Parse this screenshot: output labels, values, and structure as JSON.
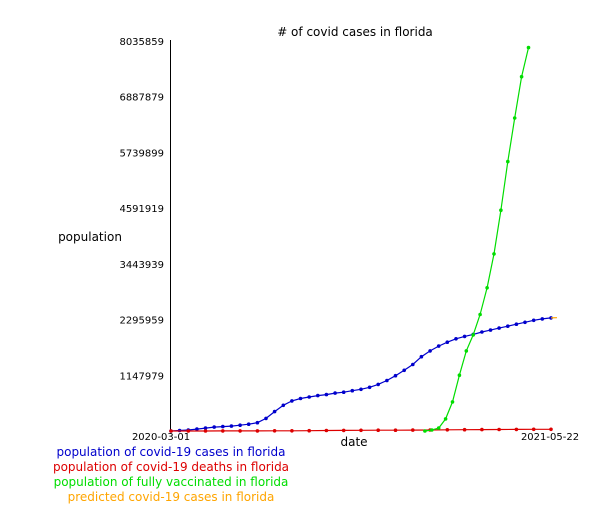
{
  "chart_data": {
    "type": "line",
    "title": "# of covid cases in florida",
    "xlabel": "date",
    "ylabel": "population",
    "x_tick_labels": [
      "2020-03-01",
      "2021-05-22"
    ],
    "x_range": [
      "2020-03-01",
      "2021-05-22"
    ],
    "y_tick_labels": [
      "8035859",
      "6887879",
      "5739899",
      "4591919",
      "3443939",
      "2295959",
      "1147979"
    ],
    "ylim": [
      0,
      8035859
    ],
    "grid": false,
    "legend_position": "bottom-left",
    "series": [
      {
        "name": "population of covid-19 cases in florida",
        "color": "#0000cc",
        "points": [
          [
            "2020-03-01",
            0
          ],
          [
            "2020-03-11",
            10000
          ],
          [
            "2020-03-21",
            20000
          ],
          [
            "2020-03-31",
            40000
          ],
          [
            "2020-04-10",
            60000
          ],
          [
            "2020-04-20",
            80000
          ],
          [
            "2020-04-30",
            90000
          ],
          [
            "2020-05-10",
            100000
          ],
          [
            "2020-05-20",
            120000
          ],
          [
            "2020-05-30",
            140000
          ],
          [
            "2020-06-09",
            170000
          ],
          [
            "2020-06-19",
            260000
          ],
          [
            "2020-06-29",
            400000
          ],
          [
            "2020-07-09",
            530000
          ],
          [
            "2020-07-19",
            620000
          ],
          [
            "2020-07-29",
            670000
          ],
          [
            "2020-08-08",
            700000
          ],
          [
            "2020-08-18",
            730000
          ],
          [
            "2020-08-28",
            750000
          ],
          [
            "2020-09-07",
            780000
          ],
          [
            "2020-09-17",
            800000
          ],
          [
            "2020-09-27",
            830000
          ],
          [
            "2020-10-07",
            860000
          ],
          [
            "2020-10-17",
            900000
          ],
          [
            "2020-10-27",
            960000
          ],
          [
            "2020-11-06",
            1040000
          ],
          [
            "2020-11-16",
            1140000
          ],
          [
            "2020-11-26",
            1250000
          ],
          [
            "2020-12-06",
            1370000
          ],
          [
            "2020-12-16",
            1530000
          ],
          [
            "2020-12-26",
            1650000
          ],
          [
            "2021-01-05",
            1750000
          ],
          [
            "2021-01-15",
            1830000
          ],
          [
            "2021-01-25",
            1900000
          ],
          [
            "2021-02-04",
            1950000
          ],
          [
            "2021-02-14",
            1990000
          ],
          [
            "2021-02-24",
            2040000
          ],
          [
            "2021-03-06",
            2080000
          ],
          [
            "2021-03-16",
            2120000
          ],
          [
            "2021-03-26",
            2160000
          ],
          [
            "2021-04-05",
            2200000
          ],
          [
            "2021-04-15",
            2240000
          ],
          [
            "2021-04-25",
            2280000
          ],
          [
            "2021-05-05",
            2310000
          ],
          [
            "2021-05-15",
            2330000
          ]
        ]
      },
      {
        "name": "population of covid-19 deaths in florida",
        "color": "#dd0000",
        "points": [
          [
            "2020-03-01",
            0
          ],
          [
            "2020-03-21",
            100
          ],
          [
            "2020-04-10",
            1000
          ],
          [
            "2020-04-30",
            1500
          ],
          [
            "2020-05-20",
            2200
          ],
          [
            "2020-06-09",
            3000
          ],
          [
            "2020-06-29",
            3700
          ],
          [
            "2020-07-19",
            5000
          ],
          [
            "2020-08-08",
            7000
          ],
          [
            "2020-08-28",
            10500
          ],
          [
            "2020-09-17",
            13000
          ],
          [
            "2020-10-07",
            14500
          ],
          [
            "2020-10-27",
            16000
          ],
          [
            "2020-11-16",
            17500
          ],
          [
            "2020-12-06",
            19500
          ],
          [
            "2020-12-26",
            21500
          ],
          [
            "2021-01-15",
            24000
          ],
          [
            "2021-02-04",
            27000
          ],
          [
            "2021-02-24",
            29500
          ],
          [
            "2021-03-16",
            31500
          ],
          [
            "2021-04-05",
            33000
          ],
          [
            "2021-04-25",
            34500
          ],
          [
            "2021-05-15",
            36000
          ]
        ]
      },
      {
        "name": "population of fully vaccinated in florida",
        "color": "#00dd00",
        "points": [
          [
            "2020-12-20",
            0
          ],
          [
            "2020-12-28",
            20000
          ],
          [
            "2021-01-05",
            60000
          ],
          [
            "2021-01-13",
            250000
          ],
          [
            "2021-01-21",
            600000
          ],
          [
            "2021-01-29",
            1150000
          ],
          [
            "2021-02-06",
            1650000
          ],
          [
            "2021-02-14",
            1980000
          ],
          [
            "2021-02-22",
            2400000
          ],
          [
            "2021-03-02",
            2950000
          ],
          [
            "2021-03-10",
            3650000
          ],
          [
            "2021-03-18",
            4550000
          ],
          [
            "2021-03-26",
            5550000
          ],
          [
            "2021-04-03",
            6450000
          ],
          [
            "2021-04-11",
            7300000
          ],
          [
            "2021-04-19",
            7900000
          ]
        ]
      },
      {
        "name": "predicted covid-19 cases in florida",
        "color": "#ffa500",
        "points": [
          [
            "2021-05-15",
            2330000
          ],
          [
            "2021-05-22",
            2335000
          ]
        ]
      }
    ]
  }
}
